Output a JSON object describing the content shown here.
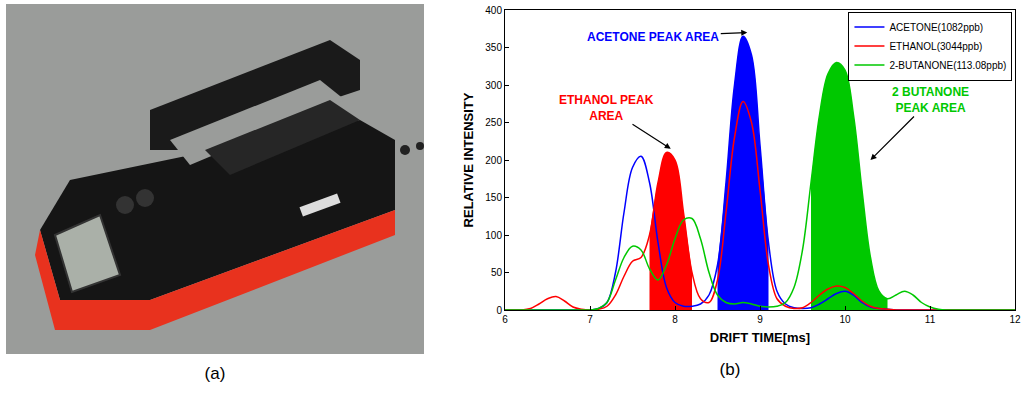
{
  "photo": {
    "caption": "(a)"
  },
  "chart_data": {
    "type": "line",
    "caption": "(b)",
    "x_title": "DRIFT TIME[ms]",
    "y_title": "RELATIVE INTENSITY",
    "xlim": [
      6,
      12
    ],
    "xticks": [
      6,
      7,
      8,
      9,
      10,
      11,
      12
    ],
    "ylim": [
      0,
      400
    ],
    "yticks": [
      0,
      50,
      100,
      150,
      200,
      250,
      300,
      350,
      400
    ],
    "grid": false,
    "legend": "upper right",
    "x": [
      6,
      6.1,
      6.2,
      6.3,
      6.4,
      6.5,
      6.6,
      6.7,
      6.8,
      6.9,
      7,
      7.1,
      7.2,
      7.3,
      7.4,
      7.5,
      7.6,
      7.7,
      7.8,
      7.9,
      8,
      8.1,
      8.2,
      8.3,
      8.4,
      8.5,
      8.6,
      8.7,
      8.8,
      8.9,
      9,
      9.1,
      9.2,
      9.3,
      9.4,
      9.5,
      9.6,
      9.7,
      9.8,
      9.9,
      10,
      10.1,
      10.2,
      10.3,
      10.4,
      10.5,
      10.6,
      10.7,
      10.8,
      10.9,
      11,
      11.1,
      11.2,
      11.3,
      11.4,
      11.5,
      11.6,
      11.7,
      11.8,
      11.9,
      12
    ],
    "series": [
      {
        "name": "ACETONE(1082ppb)",
        "color": "#0000ff",
        "peak_area": [
          8.5,
          9.1
        ],
        "values": [
          0,
          0,
          0,
          0,
          0,
          0,
          0,
          0,
          0,
          0,
          0,
          2,
          10,
          50,
          130,
          190,
          205,
          170,
          90,
          30,
          10,
          5,
          5,
          8,
          20,
          60,
          170,
          300,
          365,
          340,
          220,
          90,
          25,
          8,
          3,
          2,
          3,
          8,
          15,
          22,
          25,
          20,
          10,
          4,
          2,
          1,
          0,
          0,
          0,
          0,
          0,
          0,
          0,
          0,
          0,
          0,
          0,
          0,
          0,
          0,
          0
        ]
      },
      {
        "name": "ETHANOL(3044ppb)",
        "color": "#ff0000",
        "peak_area": [
          7.7,
          8.2
        ],
        "values": [
          0,
          0,
          0,
          2,
          8,
          15,
          18,
          12,
          4,
          1,
          0,
          1,
          5,
          20,
          45,
          65,
          70,
          100,
          170,
          210,
          200,
          130,
          50,
          15,
          10,
          40,
          130,
          230,
          278,
          250,
          160,
          60,
          15,
          5,
          2,
          3,
          10,
          20,
          28,
          32,
          30,
          22,
          12,
          5,
          2,
          1,
          0,
          0,
          0,
          0,
          0,
          0,
          0,
          0,
          0,
          0,
          0,
          0,
          0,
          0,
          0
        ]
      },
      {
        "name": "2-BUTANONE(113.08ppb)",
        "color": "#00c800",
        "peak_area": [
          9.6,
          10.5
        ],
        "values": [
          0,
          0,
          0,
          0,
          0,
          0,
          0,
          0,
          0,
          0,
          0,
          2,
          10,
          40,
          70,
          85,
          80,
          55,
          40,
          60,
          95,
          120,
          122,
          95,
          50,
          20,
          10,
          8,
          10,
          8,
          5,
          4,
          5,
          10,
          30,
          80,
          170,
          260,
          315,
          330,
          320,
          260,
          160,
          70,
          25,
          15,
          20,
          25,
          20,
          10,
          4,
          1,
          0,
          0,
          0,
          0,
          0,
          0,
          0,
          0,
          0
        ]
      }
    ],
    "annotations": [
      {
        "lines": [
          "ACETONE PEAK AREA"
        ],
        "color": "#0000ff",
        "x": 8.85,
        "y": 370
      },
      {
        "lines": [
          "ETHANOL PEAK",
          "AREA"
        ],
        "color": "#ff0000",
        "x": 7.95,
        "y": 215
      },
      {
        "lines": [
          "2 BUTANONE",
          "PEAK AREA"
        ],
        "color": "#00c800",
        "x": 10.3,
        "y": 200
      }
    ]
  }
}
